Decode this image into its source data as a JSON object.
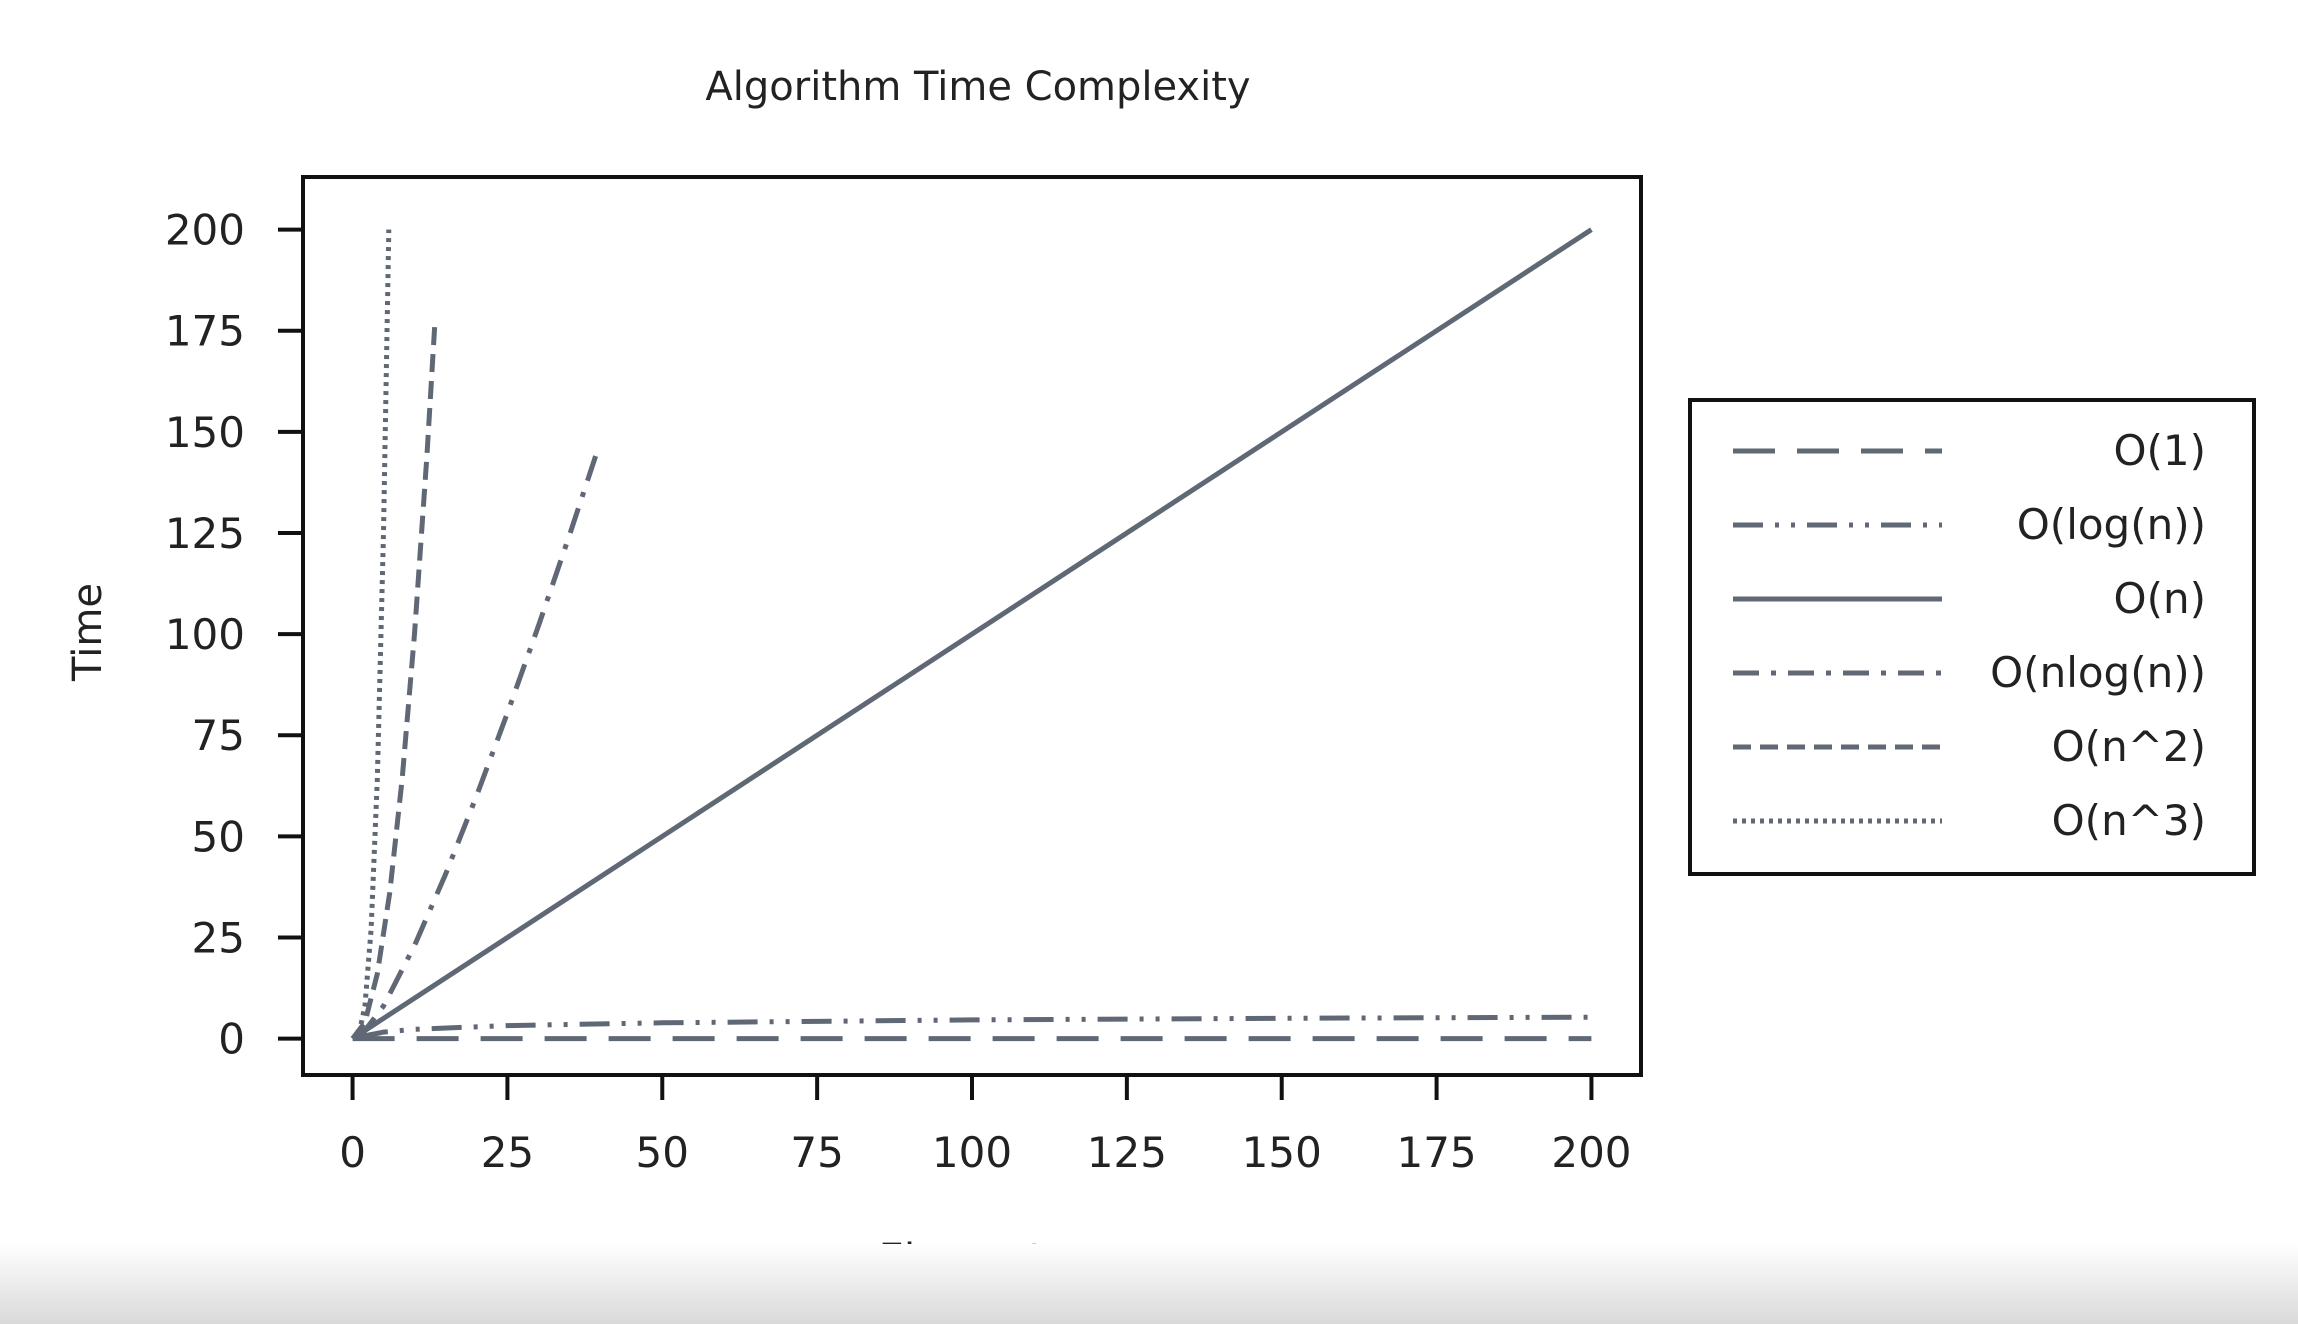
{
  "chart_data": {
    "type": "line",
    "title": "Algorithm Time Complexity",
    "xlabel": "Elements",
    "ylabel": "Time",
    "xlim": [
      -8,
      208
    ],
    "ylim": [
      -9,
      213
    ],
    "xticks": [
      0,
      25,
      50,
      75,
      100,
      125,
      150,
      175,
      200
    ],
    "yticks": [
      0,
      25,
      50,
      75,
      100,
      125,
      150,
      175,
      200
    ],
    "grid": false,
    "legend_position": "outside-right",
    "line_color": "#5f6874",
    "series": [
      {
        "name": "O(1)",
        "style": "long-dash",
        "x": [
          0,
          200
        ],
        "y": [
          0,
          0
        ]
      },
      {
        "name": "O(log(n))",
        "style": "dash-dot-dot",
        "x": [
          1,
          2,
          5,
          10,
          25,
          50,
          100,
          150,
          200
        ],
        "y": [
          0,
          0.69,
          1.61,
          2.3,
          3.22,
          3.91,
          4.61,
          5.01,
          5.3
        ]
      },
      {
        "name": "O(n)",
        "style": "solid",
        "x": [
          0,
          200
        ],
        "y": [
          0,
          200
        ]
      },
      {
        "name": "O(nlog(n))",
        "style": "dash-dot",
        "x": [
          1,
          5,
          10,
          15,
          20,
          25,
          30,
          35,
          39.3
        ],
        "y": [
          0,
          8.05,
          23.0,
          40.6,
          59.9,
          80.5,
          102,
          124.4,
          144.3
        ]
      },
      {
        "name": "O(n^2)",
        "style": "dashed",
        "x": [
          0,
          2,
          4,
          6,
          8,
          10,
          12,
          13.3
        ],
        "y": [
          0,
          4,
          16,
          36,
          64,
          100,
          144,
          177
        ]
      },
      {
        "name": "O(n^3)",
        "style": "dotted",
        "x": [
          0,
          1,
          2,
          3,
          4,
          5,
          5.85
        ],
        "y": [
          0,
          1,
          8,
          27,
          64,
          125,
          200
        ]
      }
    ]
  }
}
